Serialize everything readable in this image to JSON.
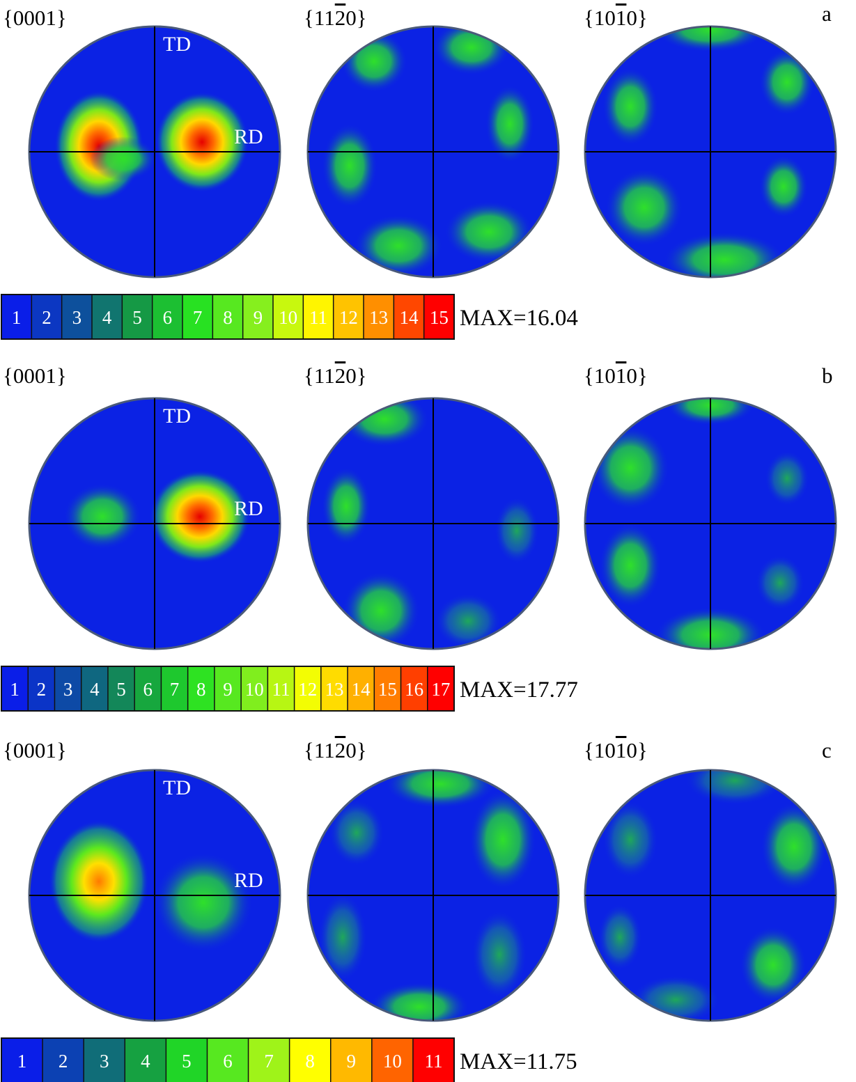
{
  "panels": [
    {
      "letter": "a",
      "headers": [
        "{0001}",
        "{11̅2̅0}",
        "{10̅1̅0}"
      ],
      "td_label": "TD",
      "rd_label": "RD",
      "colorbar": {
        "ticks": [
          "1",
          "2",
          "3",
          "4",
          "5",
          "6",
          "7",
          "8",
          "9",
          "10",
          "11",
          "12",
          "13",
          "14",
          "15"
        ],
        "max_label": "MAX=16.04",
        "max_value": 16.04
      }
    },
    {
      "letter": "b",
      "headers": [
        "{0001}",
        "{11̅2̅0}",
        "{10̅1̅0}"
      ],
      "td_label": "TD",
      "rd_label": "RD",
      "colorbar": {
        "ticks": [
          "1",
          "2",
          "3",
          "4",
          "5",
          "6",
          "7",
          "8",
          "9",
          "10",
          "11",
          "12",
          "13",
          "14",
          "15",
          "16",
          "17"
        ],
        "max_label": "MAX=17.77",
        "max_value": 17.77
      }
    },
    {
      "letter": "c",
      "headers": [
        "{0001}",
        "{11̅2̅0}",
        "{10̅1̅0}"
      ],
      "td_label": "TD",
      "rd_label": "RD",
      "colorbar": {
        "ticks": [
          "1",
          "2",
          "3",
          "4",
          "5",
          "6",
          "7",
          "8",
          "9",
          "10",
          "11"
        ],
        "max_label": "MAX=11.75",
        "max_value": 11.75
      }
    }
  ],
  "colors": {
    "low": "#0b20e6",
    "mid": "#1fd61f",
    "high": "#ff1a00"
  }
}
